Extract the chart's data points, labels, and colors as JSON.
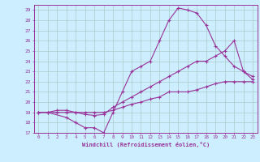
{
  "xlabel": "Windchill (Refroidissement éolien,°C)",
  "bg_color": "#cceeff",
  "grid_color": "#aacccc",
  "line_color": "#993399",
  "spine_color": "#993399",
  "xlim": [
    -0.5,
    23.5
  ],
  "ylim": [
    17,
    29.5
  ],
  "xticks": [
    0,
    1,
    2,
    3,
    4,
    5,
    6,
    7,
    8,
    9,
    10,
    11,
    12,
    13,
    14,
    15,
    16,
    17,
    18,
    19,
    20,
    21,
    22,
    23
  ],
  "yticks": [
    17,
    18,
    19,
    20,
    21,
    22,
    23,
    24,
    25,
    26,
    27,
    28,
    29
  ],
  "curves": [
    {
      "x": [
        0,
        1,
        3,
        4,
        5,
        6,
        7,
        8,
        9,
        10,
        11,
        12,
        13,
        14,
        15,
        16,
        17,
        18,
        19,
        20,
        21,
        22,
        23
      ],
      "y": [
        19,
        19,
        18.5,
        18,
        17.5,
        17.5,
        17,
        19,
        21,
        23,
        23.5,
        24,
        26,
        28,
        29.2,
        29,
        28.7,
        27.5,
        25.5,
        24.5,
        23.5,
        23,
        22.2
      ]
    },
    {
      "x": [
        0,
        1,
        2,
        3,
        4,
        5,
        6,
        7,
        8,
        9,
        10,
        11,
        12,
        13,
        14,
        15,
        16,
        17,
        18,
        19,
        20,
        21,
        22,
        23
      ],
      "y": [
        19,
        19,
        19.2,
        19.2,
        19,
        18.8,
        18.7,
        18.8,
        19.5,
        20,
        20.5,
        21,
        21.5,
        22,
        22.5,
        23,
        23.5,
        24,
        24,
        24.5,
        25,
        26,
        23,
        22.5
      ]
    },
    {
      "x": [
        0,
        1,
        2,
        3,
        4,
        5,
        6,
        7,
        8,
        9,
        10,
        11,
        12,
        13,
        14,
        15,
        16,
        17,
        18,
        19,
        20,
        21,
        22,
        23
      ],
      "y": [
        19,
        19,
        19,
        19,
        19,
        19,
        19,
        19,
        19.2,
        19.5,
        19.8,
        20,
        20.3,
        20.5,
        21,
        21,
        21,
        21.2,
        21.5,
        21.8,
        22,
        22,
        22,
        22
      ]
    }
  ]
}
